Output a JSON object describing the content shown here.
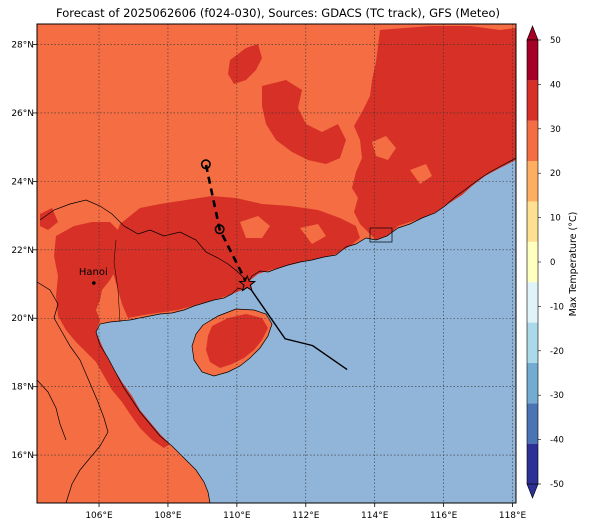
{
  "title": "Forecast of 2025062606 (f024-030), Sources: GDACS (TC track), GFS (Meteo)",
  "map": {
    "lon_range": [
      104.2,
      118.1
    ],
    "lat_range": [
      14.6,
      28.6
    ],
    "x_ticks": [
      {
        "value": 106,
        "label": "106°E"
      },
      {
        "value": 108,
        "label": "108°E"
      },
      {
        "value": 110,
        "label": "110°E"
      },
      {
        "value": 112,
        "label": "112°E"
      },
      {
        "value": 114,
        "label": "114°E"
      },
      {
        "value": 116,
        "label": "116°E"
      },
      {
        "value": 118,
        "label": "118°E"
      }
    ],
    "y_ticks": [
      {
        "value": 16,
        "label": "16°N"
      },
      {
        "value": 18,
        "label": "18°N"
      },
      {
        "value": 20,
        "label": "20°N"
      },
      {
        "value": 22,
        "label": "22°N"
      },
      {
        "value": 24,
        "label": "24°N"
      },
      {
        "value": 26,
        "label": "26°N"
      },
      {
        "value": 28,
        "label": "28°N"
      }
    ],
    "grid": true,
    "city": {
      "name": "Hanoi",
      "lon": 105.85,
      "lat": 21.03
    },
    "current_position": {
      "lon": 110.3,
      "lat": 21.0
    },
    "past_track": [
      [
        113.2,
        18.5
      ],
      [
        112.2,
        19.2
      ],
      [
        111.4,
        19.4
      ],
      [
        110.3,
        21.0
      ]
    ],
    "forecast_track": [
      [
        110.3,
        21.0
      ],
      [
        109.5,
        22.6
      ],
      [
        109.1,
        24.5
      ]
    ],
    "forecast_points": [
      [
        109.5,
        22.6
      ],
      [
        109.1,
        24.5
      ]
    ]
  },
  "colorbar": {
    "label": "Max Temperature (°C)",
    "min": -50,
    "max": 50,
    "ticks": [
      "-50",
      "-40",
      "-30",
      "-20",
      "-10",
      "0",
      "10",
      "20",
      "30",
      "40",
      "50"
    ],
    "colors": [
      "#2d3196",
      "#4a74b4",
      "#74acd1",
      "#abd9e9",
      "#e0f3f8",
      "#ffffbf",
      "#fee090",
      "#fdae61",
      "#f46d43",
      "#d73027",
      "#a50026"
    ],
    "ocean_color": "#91b5d9",
    "land_warm_color": "#f46d43",
    "land_hot_color": "#d73027"
  }
}
